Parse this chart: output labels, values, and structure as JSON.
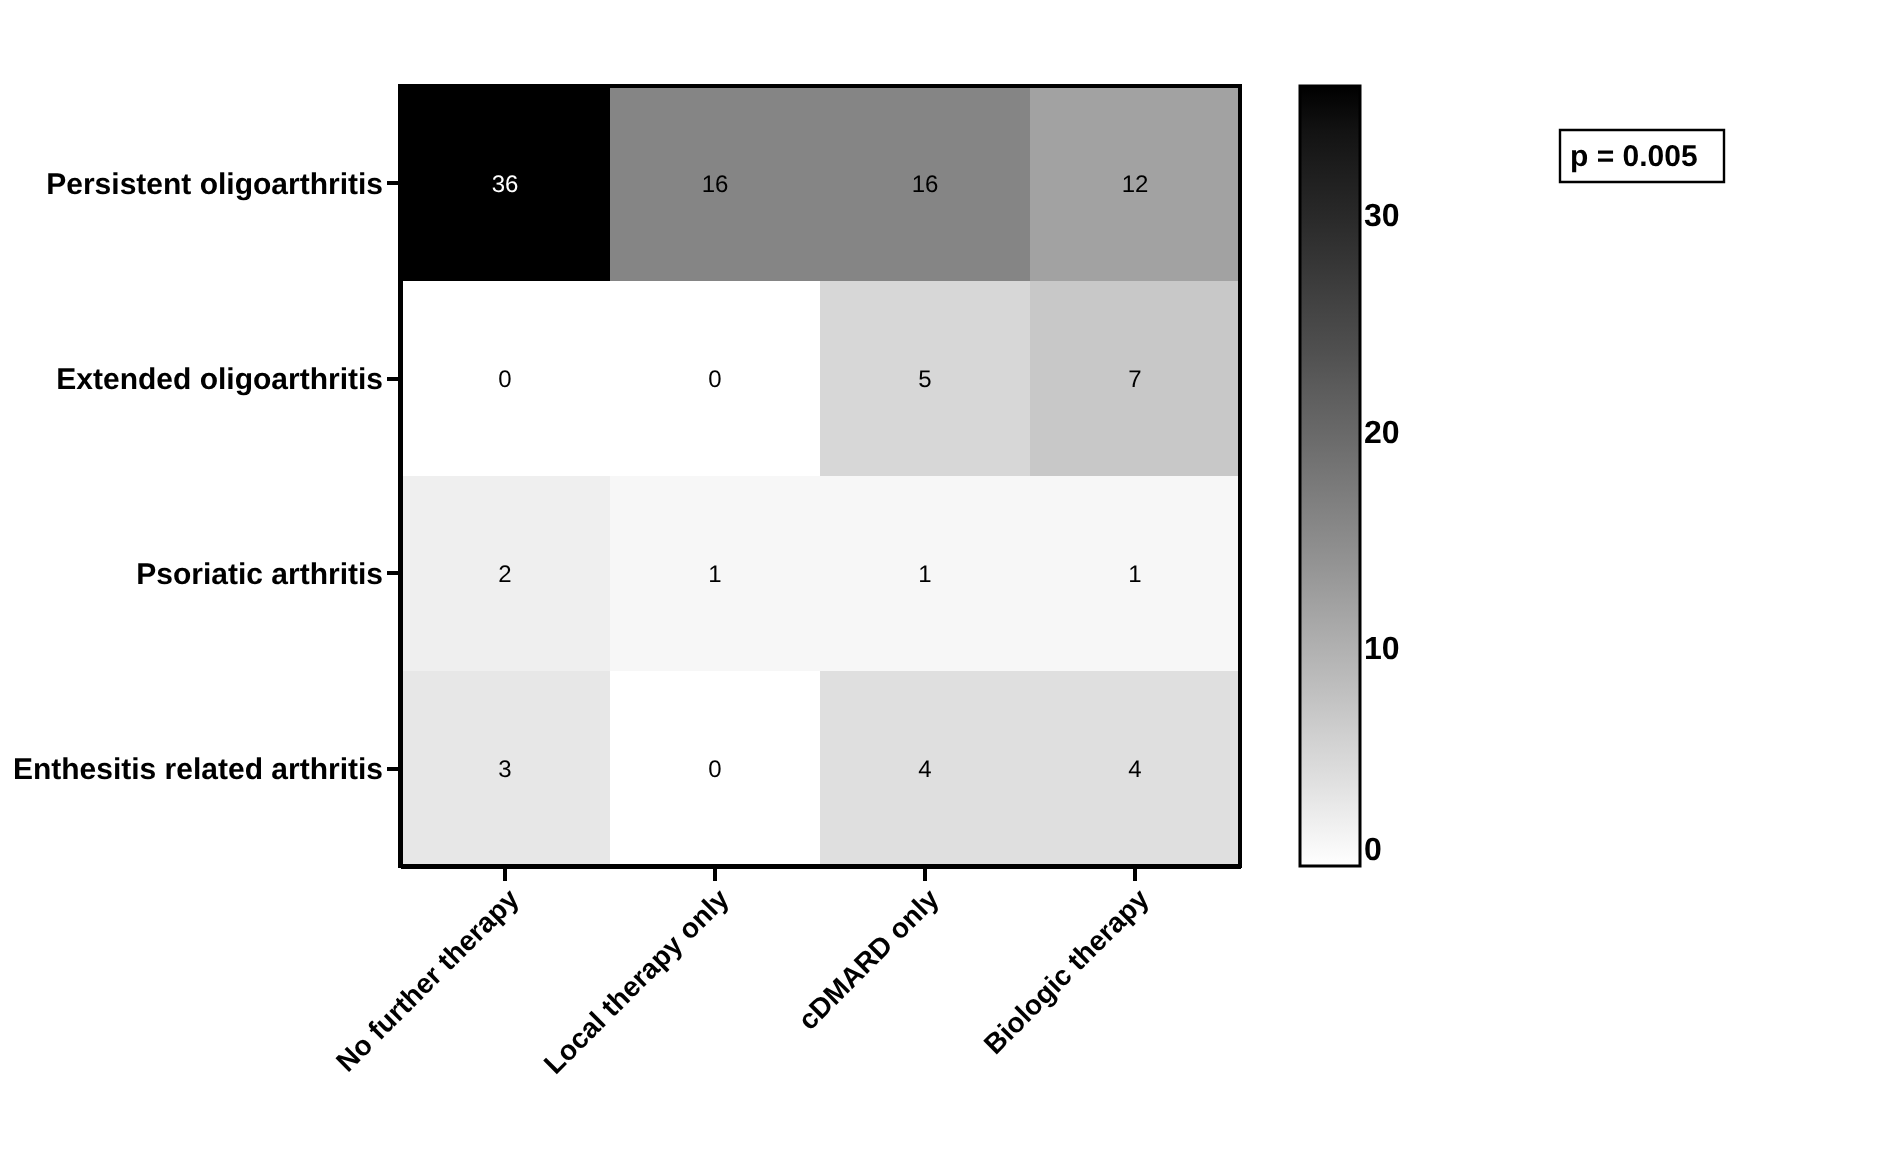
{
  "chart_data": {
    "type": "heatmap",
    "categories": [
      "No further therapy",
      "Local therapy only",
      "cDMARD only",
      "Biologic therapy"
    ],
    "y_categories": [
      "Persistent oligoarthritis",
      "Extended oligoarthritis",
      "Psoriatic arthritis",
      "Enthesitis related arthritis"
    ],
    "cells": [
      [
        36,
        16,
        16,
        12
      ],
      [
        0,
        0,
        5,
        7
      ],
      [
        2,
        1,
        1,
        1
      ],
      [
        3,
        0,
        4,
        4
      ]
    ],
    "data_labels": true,
    "clim": [
      0,
      36
    ],
    "cticks": [
      0,
      10,
      20,
      30
    ],
    "annotations": [
      "p = 0.005"
    ]
  }
}
